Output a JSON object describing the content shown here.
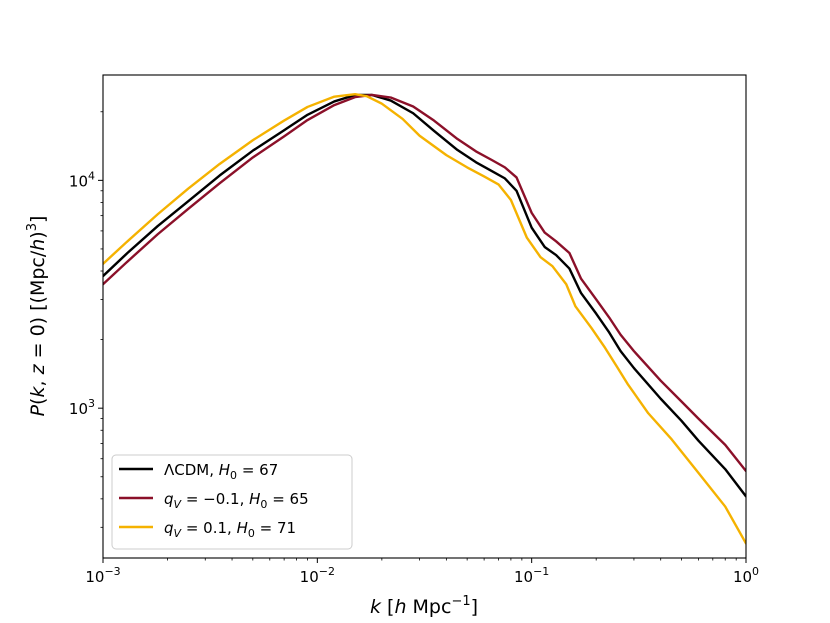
{
  "chart_data": {
    "type": "line",
    "title": "",
    "xlabel": "k [h Mpc⁻¹]",
    "ylabel": "P(k, z = 0) [(Mpc/h)³]",
    "xscale": "log",
    "yscale": "log",
    "xlim": [
      0.001,
      1
    ],
    "ylim": [
      220,
      29000
    ],
    "grid": false,
    "legend_position": "lower-left",
    "x_ticks": [
      {
        "value": 0.001,
        "base": "10",
        "exp": "−3"
      },
      {
        "value": 0.01,
        "base": "10",
        "exp": "−2"
      },
      {
        "value": 0.1,
        "base": "10",
        "exp": "−1"
      },
      {
        "value": 1,
        "base": "10",
        "exp": "0"
      }
    ],
    "y_ticks": [
      {
        "value": 1000,
        "base": "10",
        "exp": "3"
      },
      {
        "value": 10000,
        "base": "10",
        "exp": "4"
      }
    ],
    "series": [
      {
        "name": "ΛCDM, H₀ = 67",
        "label_parts": {
          "pre": "ΛCDM, ",
          "var": "H",
          "sub": "0",
          "post": " = 67"
        },
        "color": "#000000",
        "points": [
          [
            0.001,
            3800
          ],
          [
            0.0013,
            4800
          ],
          [
            0.0018,
            6300
          ],
          [
            0.0025,
            8100
          ],
          [
            0.0035,
            10500
          ],
          [
            0.005,
            13500
          ],
          [
            0.007,
            16600
          ],
          [
            0.009,
            19400
          ],
          [
            0.012,
            22200
          ],
          [
            0.015,
            23700
          ],
          [
            0.018,
            23700
          ],
          [
            0.022,
            22400
          ],
          [
            0.028,
            19700
          ],
          [
            0.035,
            16500
          ],
          [
            0.045,
            13600
          ],
          [
            0.055,
            12000
          ],
          [
            0.065,
            11000
          ],
          [
            0.075,
            10200
          ],
          [
            0.085,
            9000
          ],
          [
            0.1,
            6200
          ],
          [
            0.115,
            5100
          ],
          [
            0.13,
            4700
          ],
          [
            0.15,
            4100
          ],
          [
            0.17,
            3200
          ],
          [
            0.2,
            2600
          ],
          [
            0.23,
            2150
          ],
          [
            0.26,
            1780
          ],
          [
            0.3,
            1500
          ],
          [
            0.4,
            1100
          ],
          [
            0.5,
            880
          ],
          [
            0.6,
            720
          ],
          [
            0.8,
            540
          ],
          [
            1.0,
            410
          ]
        ]
      },
      {
        "name": "q_V = −0.1, H₀ = 65",
        "label_parts": {
          "var": "q",
          "sub": "V",
          "post": " = −0.1,  ",
          "var2": "H",
          "sub2": "0",
          "post2": " = 65"
        },
        "color": "#8b1029",
        "points": [
          [
            0.001,
            3500
          ],
          [
            0.0013,
            4400
          ],
          [
            0.0018,
            5800
          ],
          [
            0.0025,
            7500
          ],
          [
            0.0035,
            9700
          ],
          [
            0.005,
            12600
          ],
          [
            0.007,
            15600
          ],
          [
            0.009,
            18400
          ],
          [
            0.012,
            21400
          ],
          [
            0.015,
            23200
          ],
          [
            0.018,
            23700
          ],
          [
            0.022,
            23100
          ],
          [
            0.028,
            21100
          ],
          [
            0.035,
            18300
          ],
          [
            0.045,
            15200
          ],
          [
            0.055,
            13400
          ],
          [
            0.065,
            12300
          ],
          [
            0.075,
            11400
          ],
          [
            0.085,
            10300
          ],
          [
            0.1,
            7200
          ],
          [
            0.115,
            5900
          ],
          [
            0.13,
            5400
          ],
          [
            0.15,
            4800
          ],
          [
            0.17,
            3700
          ],
          [
            0.2,
            3000
          ],
          [
            0.23,
            2500
          ],
          [
            0.26,
            2100
          ],
          [
            0.3,
            1780
          ],
          [
            0.4,
            1320
          ],
          [
            0.5,
            1070
          ],
          [
            0.6,
            900
          ],
          [
            0.8,
            690
          ],
          [
            1.0,
            530
          ]
        ]
      },
      {
        "name": "q_V = 0.1, H₀ = 71",
        "label_parts": {
          "var": "q",
          "sub": "V",
          "post": " = 0.1,  ",
          "var2": "H",
          "sub2": "0",
          "post2": " = 71"
        },
        "color": "#f5b200",
        "points": [
          [
            0.001,
            4300
          ],
          [
            0.0013,
            5400
          ],
          [
            0.0018,
            7100
          ],
          [
            0.0025,
            9200
          ],
          [
            0.0035,
            11800
          ],
          [
            0.005,
            15000
          ],
          [
            0.007,
            18300
          ],
          [
            0.009,
            21000
          ],
          [
            0.012,
            23300
          ],
          [
            0.015,
            23900
          ],
          [
            0.017,
            23400
          ],
          [
            0.02,
            21700
          ],
          [
            0.025,
            18600
          ],
          [
            0.03,
            15700
          ],
          [
            0.04,
            12900
          ],
          [
            0.05,
            11400
          ],
          [
            0.06,
            10400
          ],
          [
            0.07,
            9600
          ],
          [
            0.08,
            8200
          ],
          [
            0.095,
            5600
          ],
          [
            0.11,
            4600
          ],
          [
            0.125,
            4200
          ],
          [
            0.145,
            3500
          ],
          [
            0.16,
            2800
          ],
          [
            0.19,
            2250
          ],
          [
            0.22,
            1840
          ],
          [
            0.25,
            1520
          ],
          [
            0.28,
            1280
          ],
          [
            0.35,
            950
          ],
          [
            0.45,
            730
          ],
          [
            0.6,
            520
          ],
          [
            0.8,
            370
          ],
          [
            1.0,
            255
          ]
        ]
      }
    ]
  }
}
